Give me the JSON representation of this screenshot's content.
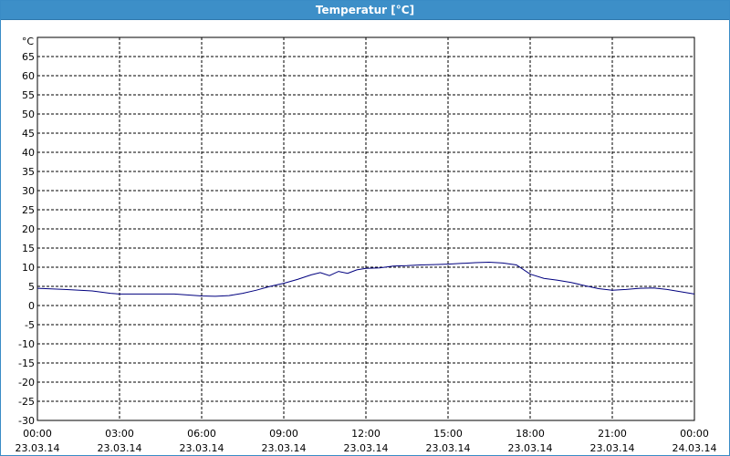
{
  "window": {
    "title": "Temperatur [°C]"
  },
  "chart_data": {
    "type": "line",
    "title": "Temperatur [°C]",
    "unit_label": "°C",
    "ylim": [
      -30,
      70
    ],
    "y_ticks": [
      65,
      60,
      55,
      50,
      45,
      40,
      35,
      30,
      25,
      20,
      15,
      10,
      5,
      0,
      -5,
      -10,
      -15,
      -20,
      -25,
      -30
    ],
    "x_ticks": [
      {
        "time": "00:00",
        "date": "23.03.14"
      },
      {
        "time": "03:00",
        "date": "23.03.14"
      },
      {
        "time": "06:00",
        "date": "23.03.14"
      },
      {
        "time": "09:00",
        "date": "23.03.14"
      },
      {
        "time": "12:00",
        "date": "23.03.14"
      },
      {
        "time": "15:00",
        "date": "23.03.14"
      },
      {
        "time": "18:00",
        "date": "23.03.14"
      },
      {
        "time": "21:00",
        "date": "23.03.14"
      },
      {
        "time": "00:00",
        "date": "24.03.14"
      }
    ],
    "grid": true,
    "grid_style": "dashed",
    "line_color": "#00007f",
    "series": [
      {
        "x": [
          "23.03.14 00:00",
          "23.03.14 01:00",
          "23.03.14 02:00",
          "23.03.14 02:40",
          "23.03.14 03:00",
          "23.03.14 04:00",
          "23.03.14 05:00",
          "23.03.14 06:00",
          "23.03.14 06:30",
          "23.03.14 07:00",
          "23.03.14 07:30",
          "23.03.14 08:00",
          "23.03.14 08:30",
          "23.03.14 09:00",
          "23.03.14 09:30",
          "23.03.14 10:00",
          "23.03.14 10:20",
          "23.03.14 10:40",
          "23.03.14 11:00",
          "23.03.14 11:20",
          "23.03.14 11:40",
          "23.03.14 12:00",
          "23.03.14 12:30",
          "23.03.14 13:00",
          "23.03.14 13:30",
          "23.03.14 14:00",
          "23.03.14 14:30",
          "23.03.14 15:00",
          "23.03.14 15:30",
          "23.03.14 16:00",
          "23.03.14 16:30",
          "23.03.14 17:00",
          "23.03.14 17:30",
          "23.03.14 18:00",
          "23.03.14 18:30",
          "23.03.14 19:00",
          "23.03.14 19:30",
          "23.03.14 20:00",
          "23.03.14 20:30",
          "23.03.14 21:00",
          "23.03.14 21:30",
          "23.03.14 22:00",
          "23.03.14 22:30",
          "23.03.14 23:00",
          "23.03.14 23:30",
          "24.03.14 00:00"
        ],
        "y": [
          4.5,
          4.2,
          3.8,
          3.2,
          3.0,
          3.0,
          3.0,
          2.5,
          2.4,
          2.6,
          3.2,
          4.0,
          5.0,
          5.8,
          6.8,
          8.0,
          8.6,
          7.8,
          8.9,
          8.4,
          9.3,
          9.7,
          9.8,
          10.3,
          10.4,
          10.6,
          10.7,
          10.8,
          11.0,
          11.2,
          11.3,
          11.1,
          10.6,
          8.2,
          7.1,
          6.6,
          6.0,
          5.2,
          4.4,
          4.0,
          4.2,
          4.5,
          4.6,
          4.2,
          3.6,
          3.0
        ]
      }
    ]
  }
}
